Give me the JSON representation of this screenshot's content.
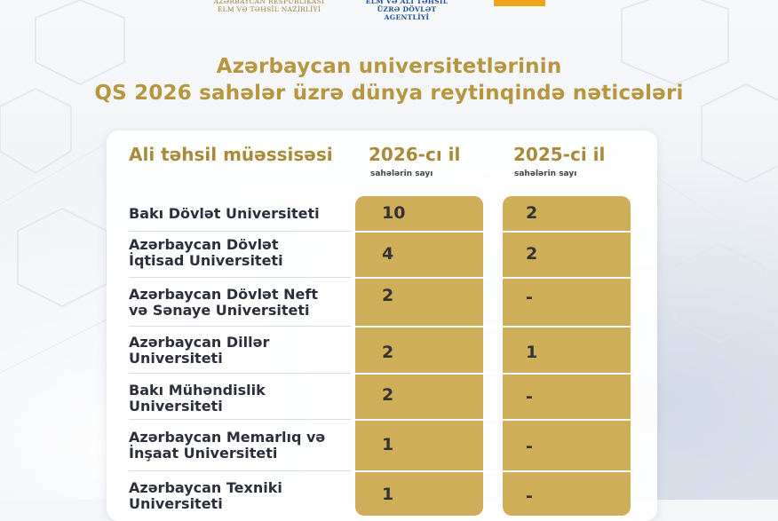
{
  "header": {
    "ministry": "AZƏRBAYCAN RESPUBLİKASI ELM VƏ TƏHSİL NAZİRLİYİ",
    "agency": "ELM VƏ ALİ TƏHSİL ÜZRƏ DÖVLƏT AGENTLİYİ"
  },
  "title_line1": "Azərbaycan universitetlərinin",
  "title_line2": "QS 2026 sahələr üzrə dünya  reytinqində nəticələri",
  "table": {
    "col_name": "Ali təhsil müəssisəsi",
    "col_2026": "2026-cı il",
    "col_2025": "2025-ci il",
    "sub_2026": "sahələrin sayı",
    "sub_2025": "sahələrin sayı",
    "rows": [
      {
        "line1": "Bakı Dövlət Universiteti",
        "line2": "",
        "v2026": "10",
        "v2025": "2"
      },
      {
        "line1": "Azərbaycan Dövlət",
        "line2": "İqtisad Universiteti",
        "v2026": "4",
        "v2025": "2"
      },
      {
        "line1": "Azərbaycan Dövlət Neft",
        "line2": "və Sənaye Universiteti",
        "v2026": "2",
        "v2025": "-"
      },
      {
        "line1": "Azərbaycan Dillər",
        "line2": "Universiteti",
        "v2026": "2",
        "v2025": "1"
      },
      {
        "line1": "Bakı Mühəndislik",
        "line2": "Universiteti",
        "v2026": "2",
        "v2025": "-"
      },
      {
        "line1": "Azərbaycan Memarlıq və",
        "line2": "İnşaat Universiteti",
        "v2026": "1",
        "v2025": "-"
      },
      {
        "line1": "Azərbaycan Texniki",
        "line2": "Universiteti",
        "v2026": "1",
        "v2025": "-"
      }
    ]
  },
  "colors": {
    "gold": "#cfae5a",
    "title": "#b6963e",
    "accent_orange": "#f0a21a"
  }
}
